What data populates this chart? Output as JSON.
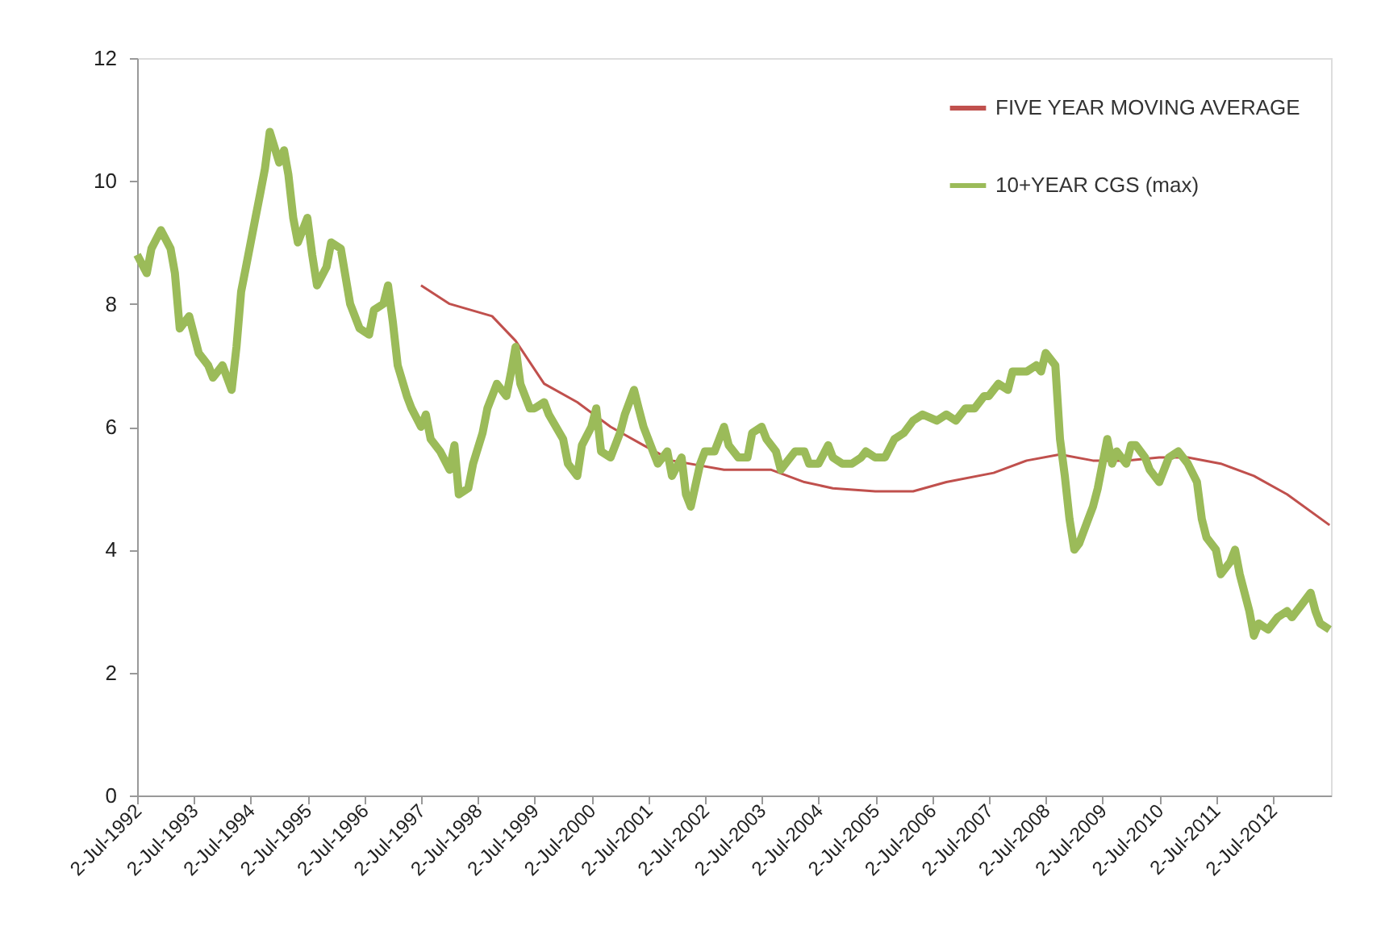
{
  "chart_data": {
    "type": "line",
    "xlim": [
      "1992-07-01",
      "2013-07-10"
    ],
    "xticks": [
      {
        "value": "1992-07-02",
        "label": "2-Jul-1992"
      },
      {
        "value": "1993-07-02",
        "label": "2-Jul-1993"
      },
      {
        "value": "1994-07-02",
        "label": "2-Jul-1994"
      },
      {
        "value": "1995-07-02",
        "label": "2-Jul-1995"
      },
      {
        "value": "1996-07-02",
        "label": "2-Jul-1996"
      },
      {
        "value": "1997-07-02",
        "label": "2-Jul-1997"
      },
      {
        "value": "1998-07-02",
        "label": "2-Jul-1998"
      },
      {
        "value": "1999-07-02",
        "label": "2-Jul-1999"
      },
      {
        "value": "2000-07-02",
        "label": "2-Jul-2000"
      },
      {
        "value": "2001-07-02",
        "label": "2-Jul-2001"
      },
      {
        "value": "2002-07-02",
        "label": "2-Jul-2002"
      },
      {
        "value": "2003-07-02",
        "label": "2-Jul-2003"
      },
      {
        "value": "2004-07-02",
        "label": "2-Jul-2004"
      },
      {
        "value": "2005-07-02",
        "label": "2-Jul-2005"
      },
      {
        "value": "2006-07-02",
        "label": "2-Jul-2006"
      },
      {
        "value": "2007-07-02",
        "label": "2-Jul-2007"
      },
      {
        "value": "2008-07-02",
        "label": "2-Jul-2008"
      },
      {
        "value": "2009-07-02",
        "label": "2-Jul-2009"
      },
      {
        "value": "2010-07-02",
        "label": "2-Jul-2010"
      },
      {
        "value": "2011-07-02",
        "label": "2-Jul-2011"
      },
      {
        "value": "2012-07-02",
        "label": "2-Jul-2012"
      }
    ],
    "ylim": [
      0,
      12
    ],
    "yticks": [
      0,
      2,
      4,
      6,
      8,
      10,
      12
    ],
    "grid": false,
    "legend": "top right",
    "line_style": "solid",
    "marker": "none",
    "series": [
      {
        "name": "FIVE YEAR MOVING AVERAGE",
        "color": "#c0504d",
        "x": [
          "1997-07",
          "1998-01",
          "1998-10",
          "1999-03",
          "1999-09",
          "2000-04",
          "2000-11",
          "2001-06",
          "2001-12",
          "2002-11",
          "2003-09",
          "2004-04",
          "2004-10",
          "2005-07",
          "2006-03",
          "2006-10",
          "2007-08",
          "2008-03",
          "2008-10",
          "2009-05",
          "2009-12",
          "2010-07",
          "2011-01",
          "2011-08",
          "2012-03",
          "2012-10",
          "2013-07"
        ],
        "values": [
          8.3,
          8.0,
          7.8,
          7.4,
          6.7,
          6.4,
          6.0,
          5.7,
          5.45,
          5.3,
          5.3,
          5.1,
          5.0,
          4.95,
          4.95,
          5.1,
          5.25,
          5.45,
          5.55,
          5.45,
          5.45,
          5.5,
          5.5,
          5.4,
          5.2,
          4.9,
          4.4
        ]
      },
      {
        "name": "10+YEAR CGS (max)",
        "color": "#9bbb59",
        "x": [
          "1992-07",
          "1992-09",
          "1992-10",
          "1992-12",
          "1993-02",
          "1993-03",
          "1993-04",
          "1993-06",
          "1993-08",
          "1993-10",
          "1993-11",
          "1994-01",
          "1994-03",
          "1994-04",
          "1994-05",
          "1994-06",
          "1994-08",
          "1994-09",
          "1994-10",
          "1994-11",
          "1995-01",
          "1995-02",
          "1995-03",
          "1995-04",
          "1995-05",
          "1995-07",
          "1995-08",
          "1995-09",
          "1995-11",
          "1995-12",
          "1996-02",
          "1996-04",
          "1996-06",
          "1996-08",
          "1996-09",
          "1996-11",
          "1996-12",
          "1997-01",
          "1997-02",
          "1997-04",
          "1997-05",
          "1997-07",
          "1997-08",
          "1997-09",
          "1997-11",
          "1998-01",
          "1998-02",
          "1998-03",
          "1998-05",
          "1998-06",
          "1998-08",
          "1998-09",
          "1998-11",
          "1999-01",
          "1999-02",
          "1999-03",
          "1999-04",
          "1999-06",
          "1999-07",
          "1999-09",
          "1999-10",
          "2000-01",
          "2000-02",
          "2000-04",
          "2000-05",
          "2000-07",
          "2000-08",
          "2000-09",
          "2000-11",
          "2001-01",
          "2001-02",
          "2001-04",
          "2001-05",
          "2001-06",
          "2001-08",
          "2001-09",
          "2001-11",
          "2001-12",
          "2002-02",
          "2002-03",
          "2002-04",
          "2002-06",
          "2002-07",
          "2002-09",
          "2002-11",
          "2002-12",
          "2003-02",
          "2003-04",
          "2003-05",
          "2003-07",
          "2003-08",
          "2003-10",
          "2003-11",
          "2003-12",
          "2004-02",
          "2004-04",
          "2004-05",
          "2004-07",
          "2004-09",
          "2004-10",
          "2004-12",
          "2005-02",
          "2005-04",
          "2005-05",
          "2005-07",
          "2005-09",
          "2005-11",
          "2006-01",
          "2006-03",
          "2006-05",
          "2006-08",
          "2006-10",
          "2006-12",
          "2007-02",
          "2007-04",
          "2007-06",
          "2007-07",
          "2007-09",
          "2007-11",
          "2007-12",
          "2008-02",
          "2008-03",
          "2008-05",
          "2008-06",
          "2008-07",
          "2008-09",
          "2008-10",
          "2008-11",
          "2008-12",
          "2009-01",
          "2009-02",
          "2009-04",
          "2009-05",
          "2009-06",
          "2009-08",
          "2009-09",
          "2009-10",
          "2009-12",
          "2010-01",
          "2010-02",
          "2010-04",
          "2010-05",
          "2010-07",
          "2010-08",
          "2010-09",
          "2010-11",
          "2010-12",
          "2011-01",
          "2011-03",
          "2011-04",
          "2011-05",
          "2011-07",
          "2011-08",
          "2011-10",
          "2011-11",
          "2011-12",
          "2012-02",
          "2012-03",
          "2012-04",
          "2012-06",
          "2012-07",
          "2012-08",
          "2012-10",
          "2012-11",
          "2013-01",
          "2013-03",
          "2013-04",
          "2013-05",
          "2013-07"
        ],
        "values": [
          8.8,
          8.5,
          8.9,
          9.2,
          8.9,
          8.5,
          7.6,
          7.8,
          7.2,
          7.0,
          6.8,
          7.0,
          6.6,
          7.3,
          8.2,
          8.6,
          9.4,
          9.8,
          10.2,
          10.8,
          10.3,
          10.5,
          10.1,
          9.4,
          9.0,
          9.4,
          8.8,
          8.3,
          8.6,
          9.0,
          8.9,
          8.0,
          7.6,
          7.5,
          7.9,
          8.0,
          8.3,
          7.7,
          7.0,
          6.5,
          6.3,
          6.0,
          6.2,
          5.8,
          5.6,
          5.3,
          5.7,
          4.9,
          5.0,
          5.4,
          5.9,
          6.3,
          6.7,
          6.5,
          6.9,
          7.3,
          6.7,
          6.3,
          6.3,
          6.4,
          6.2,
          5.8,
          5.4,
          5.2,
          5.7,
          6.0,
          6.3,
          5.6,
          5.5,
          5.9,
          6.2,
          6.6,
          6.3,
          6.0,
          5.6,
          5.4,
          5.6,
          5.2,
          5.5,
          4.9,
          4.7,
          5.4,
          5.6,
          5.6,
          6.0,
          5.7,
          5.5,
          5.5,
          5.9,
          6.0,
          5.8,
          5.6,
          5.3,
          5.4,
          5.6,
          5.6,
          5.4,
          5.4,
          5.7,
          5.5,
          5.4,
          5.4,
          5.5,
          5.6,
          5.5,
          5.5,
          5.8,
          5.9,
          6.1,
          6.2,
          6.1,
          6.2,
          6.1,
          6.3,
          6.3,
          6.5,
          6.5,
          6.7,
          6.6,
          6.9,
          6.9,
          6.9,
          7.0,
          6.9,
          7.2,
          7.0,
          5.8,
          5.2,
          4.5,
          4.0,
          4.1,
          4.5,
          4.7,
          5.0,
          5.8,
          5.4,
          5.6,
          5.4,
          5.7,
          5.7,
          5.5,
          5.3,
          5.1,
          5.3,
          5.5,
          5.6,
          5.5,
          5.4,
          5.1,
          4.5,
          4.2,
          4.0,
          3.6,
          3.8,
          4.0,
          3.6,
          3.0,
          2.6,
          2.8,
          2.7,
          2.8,
          2.9,
          3.0,
          2.9,
          3.1,
          3.3,
          3.0,
          2.8,
          2.7
        ]
      }
    ]
  }
}
